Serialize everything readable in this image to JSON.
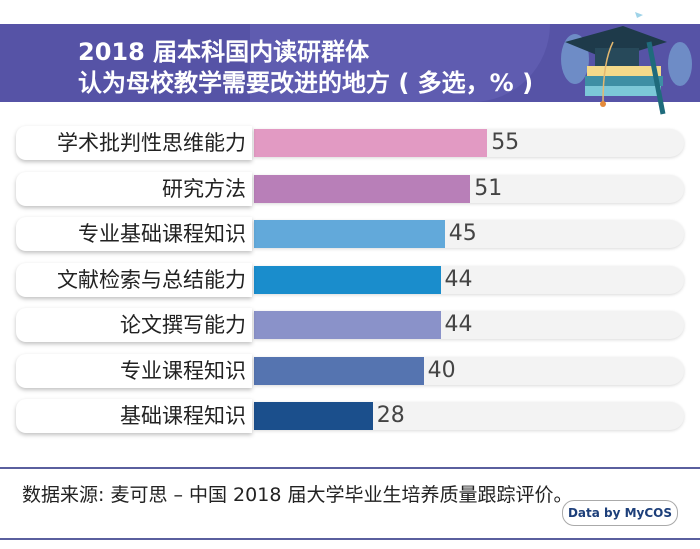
{
  "title_line1": "2018 届本科国内读研群体",
  "title_line2": "认为母校教学需要改进的地方 ( 多选，% )",
  "chart_data": {
    "type": "bar",
    "orientation": "horizontal",
    "title": "2018 届本科国内读研群体 认为母校教学需要改进的地方 ( 多选，% )",
    "categories": [
      "学术批判性思维能力",
      "研究方法",
      "专业基础课程知识",
      "文献检索与总结能力",
      "论文撰写能力",
      "专业课程知识",
      "基础课程知识"
    ],
    "values": [
      55,
      51,
      45,
      44,
      44,
      40,
      28
    ],
    "colors": [
      "#e29ac3",
      "#b87fb8",
      "#62a9da",
      "#1a8dcc",
      "#8a92c9",
      "#5574b0",
      "#1b4f8c"
    ],
    "xlim": [
      0,
      100
    ],
    "grid": false
  },
  "footer": {
    "source": "数据来源: 麦可思 – 中国 2018 届大学毕业生培养质量跟踪评价。",
    "badge": "Data by MyCOS"
  }
}
